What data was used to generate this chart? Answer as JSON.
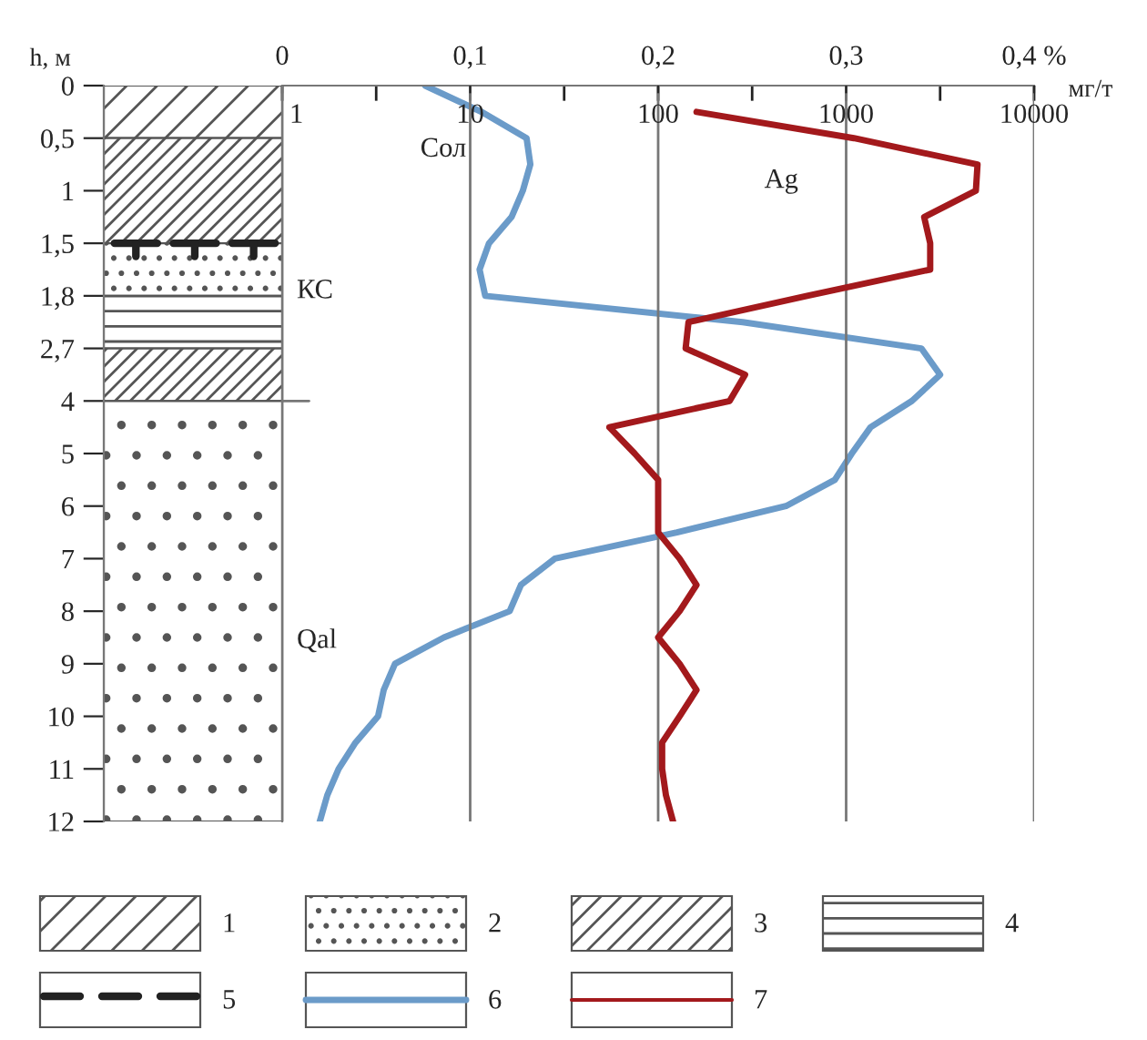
{
  "chart_data": {
    "type": "line",
    "orientation": "horizontal",
    "ylabel": "h, м",
    "xlabel": "мг/т",
    "categories": [
      "0",
      null,
      "0,5",
      null,
      "1",
      null,
      "1,5",
      null,
      "1,8",
      null,
      "2,7",
      null,
      "4",
      null,
      "5",
      null,
      "6",
      null,
      "7",
      null,
      "8",
      null,
      "9",
      null,
      "10",
      null,
      "11",
      null,
      "12"
    ],
    "log": "x",
    "xlim": [
      1,
      10000
    ],
    "xticks": [
      1,
      10,
      100,
      1000,
      10000
    ],
    "x2lim": [
      0,
      0.4
    ],
    "x2ticks": [
      {
        "value": 0,
        "label": "0"
      },
      {
        "value": 0.05,
        "label": null
      },
      {
        "value": 0.1,
        "label": "0,1"
      },
      {
        "value": 0.15,
        "label": null
      },
      {
        "value": 0.2,
        "label": "0,2"
      },
      {
        "value": 0.25,
        "label": null
      },
      {
        "value": 0.3,
        "label": "0,3"
      },
      {
        "value": 0.35,
        "label": null
      },
      {
        "value": 0.4,
        "label": "0,4 %"
      }
    ],
    "grid": "x",
    "legend": false,
    "series": [
      {
        "name": "Сол",
        "color": "#6b9bc9",
        "axis": "x2",
        "values": [
          0.076,
          0.106,
          0.13,
          0.132,
          0.128,
          0.122,
          0.11,
          0.105,
          0.108,
          0.245,
          0.34,
          0.35,
          0.335,
          0.313,
          0.303,
          0.294,
          0.268,
          0.21,
          0.145,
          0.127,
          0.121,
          0.086,
          0.06,
          0.054,
          0.051,
          0.039,
          0.03,
          0.024,
          0.02
        ]
      },
      {
        "name": "Ag",
        "color": "#a3191c",
        "values": [
          null,
          160,
          1100,
          5000,
          4900,
          2600,
          2800,
          2800,
          620,
          145,
          140,
          290,
          240,
          55,
          75,
          100,
          100,
          100,
          130,
          160,
          130,
          100,
          130,
          160,
          130,
          105,
          105,
          110,
          120
        ]
      }
    ],
    "annotations": [
      "КС",
      "Qal",
      "1",
      "2",
      "3",
      "4",
      "5",
      "6",
      "7"
    ]
  }
}
